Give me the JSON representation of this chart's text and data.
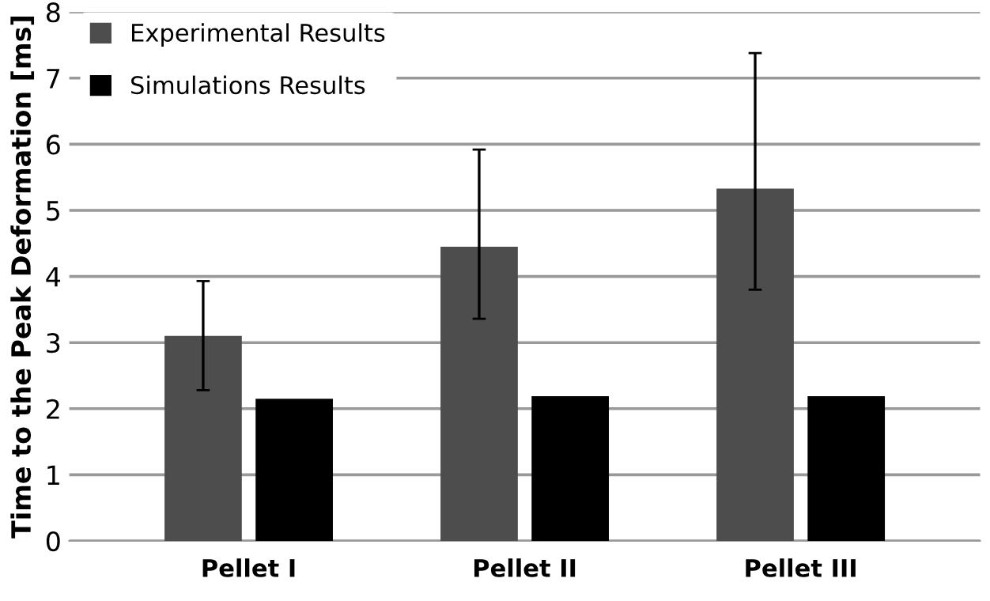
{
  "chart_data": {
    "type": "bar",
    "ylabel": "Time to the Peak Deformation [ms]",
    "categories": [
      "Pellet I",
      "Pellet II",
      "Pellet III"
    ],
    "series": [
      {
        "name": "Experimental Results",
        "color": "#4d4d4d",
        "values": [
          3.1,
          4.45,
          5.33
        ],
        "errors": [
          [
            2.28,
            3.93
          ],
          [
            3.36,
            5.92
          ],
          [
            3.8,
            7.38
          ]
        ]
      },
      {
        "name": "Simulations Results",
        "color": "#000000",
        "values": [
          2.15,
          2.19,
          2.19
        ]
      }
    ],
    "ylim": [
      0,
      8
    ],
    "yticks": [
      0,
      1,
      2,
      3,
      4,
      5,
      6,
      7,
      8
    ],
    "grid": "y",
    "legend": "top left"
  }
}
